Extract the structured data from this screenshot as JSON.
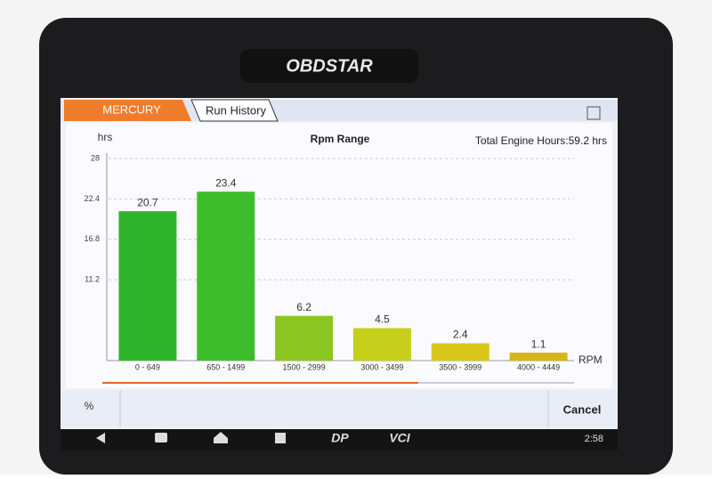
{
  "ui": {
    "brand": "OBDSTAR",
    "tabs": [
      "MERCURY",
      "Run History"
    ],
    "percent": "%",
    "cancel": "Cancel",
    "nav": [
      "DP",
      "VCI"
    ],
    "time": "2:58"
  },
  "chart_data": {
    "type": "bar",
    "title": "Rpm Range",
    "y_label": "hrs",
    "x_label": "RPM",
    "annotation": "Total Engine Hours:59.2 hrs",
    "categories": [
      "0 - 649",
      "650 - 1499",
      "1500 - 2999",
      "3000 - 3499",
      "3500 - 3999",
      "4000 - 4449"
    ],
    "values": [
      20.7,
      23.4,
      6.2,
      4.5,
      2.4,
      1.1
    ],
    "colors": [
      "#2fb52c",
      "#3dbd2b",
      "#8cc623",
      "#c6cf1c",
      "#d7c81b",
      "#d6b616"
    ],
    "ylim": [
      0,
      28
    ],
    "yticks": [
      11.2,
      16.8,
      22.4,
      28
    ],
    "grid": true
  }
}
